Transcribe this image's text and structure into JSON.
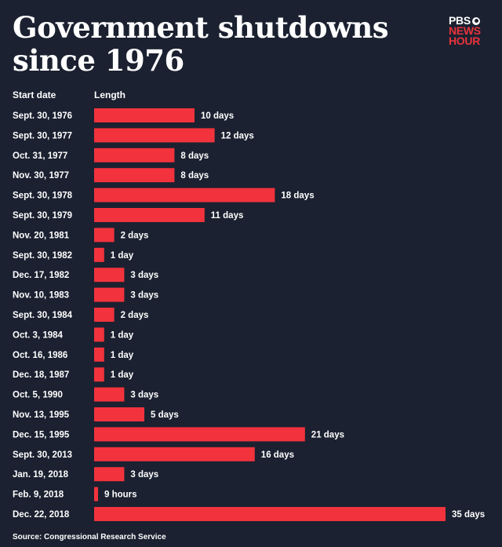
{
  "header": {
    "title": "Government shutdowns since 1976",
    "logo_line1": "PBS",
    "logo_line2": "NEWS",
    "logo_line3": "HOUR"
  },
  "columns": {
    "start_date": "Start date",
    "length": "Length"
  },
  "source": "Source: Congressional Research Service",
  "colors": {
    "background": "#1b2130",
    "bar": "#f2333d",
    "text": "#ffffff",
    "logo_accent": "#e8343d"
  },
  "chart_data": {
    "type": "bar",
    "orientation": "horizontal",
    "title": "Government shutdowns since 1976",
    "categories": [
      "Sept. 30, 1976",
      "Sept. 30, 1977",
      "Oct. 31, 1977",
      "Nov. 30, 1977",
      "Sept. 30, 1978",
      "Sept. 30, 1979",
      "Nov. 20, 1981",
      "Sept. 30, 1982",
      "Dec. 17, 1982",
      "Nov. 10, 1983",
      "Sept. 30, 1984",
      "Oct. 3, 1984",
      "Oct. 16, 1986",
      "Dec. 18, 1987",
      "Oct. 5, 1990",
      "Nov. 13, 1995",
      "Dec. 15, 1995",
      "Sept. 30, 2013",
      "Jan. 19, 2018",
      "Feb. 9, 2018",
      "Dec. 22, 2018"
    ],
    "values": [
      10,
      12,
      8,
      8,
      18,
      11,
      2,
      1,
      3,
      3,
      2,
      1,
      1,
      1,
      3,
      5,
      21,
      16,
      3,
      0.375,
      35
    ],
    "value_labels": [
      "10 days",
      "12 days",
      "8 days",
      "8 days",
      "18 days",
      "11 days",
      "2 days",
      "1 day",
      "3 days",
      "3 days",
      "2 days",
      "1 day",
      "1 day",
      "1 day",
      "3 days",
      "5 days",
      "21 days",
      "16 days",
      "3 days",
      "9 hours",
      "35 days"
    ],
    "unit": "days",
    "xlim": [
      0,
      35
    ]
  }
}
